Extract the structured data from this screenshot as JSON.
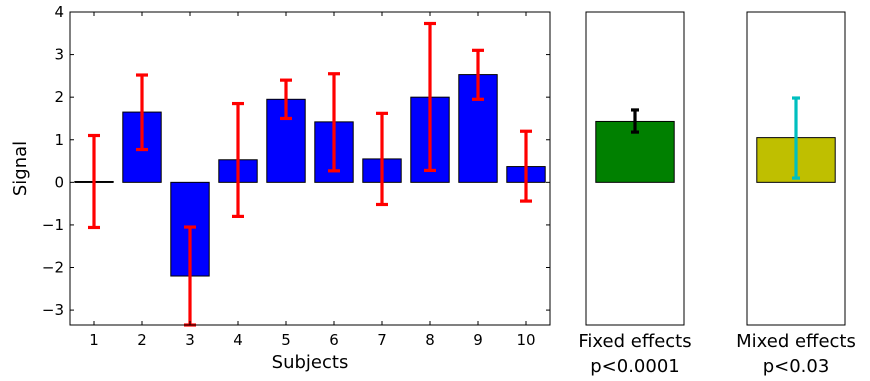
{
  "chart_data": [
    {
      "type": "bar",
      "title": "",
      "xlabel": "Subjects",
      "ylabel": "Signal",
      "categories": [
        "1",
        "2",
        "3",
        "4",
        "5",
        "6",
        "7",
        "8",
        "9",
        "10"
      ],
      "values": [
        0.02,
        1.65,
        -2.2,
        0.53,
        1.95,
        1.42,
        0.55,
        2.0,
        2.53,
        0.37
      ],
      "error_low": [
        -1.06,
        0.77,
        -3.35,
        -0.8,
        1.5,
        0.27,
        -0.52,
        0.28,
        1.95,
        -0.44
      ],
      "error_high": [
        1.1,
        2.52,
        -1.05,
        1.85,
        2.4,
        2.55,
        1.62,
        3.73,
        3.1,
        1.2
      ],
      "ylim": [
        -3.35,
        4
      ],
      "yticks": [
        -3,
        -2,
        -1,
        0,
        1,
        2,
        3,
        4
      ],
      "ytick_labels": [
        "−3",
        "−2",
        "−1",
        "0",
        "1",
        "2",
        "3",
        "4"
      ],
      "grid": false,
      "bar_color": "#0000ff",
      "error_color": "#ff0000"
    },
    {
      "type": "bar",
      "xlabel": "Fixed effects",
      "sublabel": "p<0.0001",
      "values": [
        1.43
      ],
      "error_low": [
        1.18
      ],
      "error_high": [
        1.7
      ],
      "ylim": [
        -3.35,
        4
      ],
      "bar_color": "#008000",
      "error_color": "#000000"
    },
    {
      "type": "bar",
      "xlabel": "Mixed effects",
      "sublabel": "p<0.03",
      "values": [
        1.05
      ],
      "error_low": [
        0.1
      ],
      "error_high": [
        1.98
      ],
      "ylim": [
        -3.35,
        4
      ],
      "bar_color": "#bfbf00",
      "error_color": "#00bfbf"
    }
  ]
}
